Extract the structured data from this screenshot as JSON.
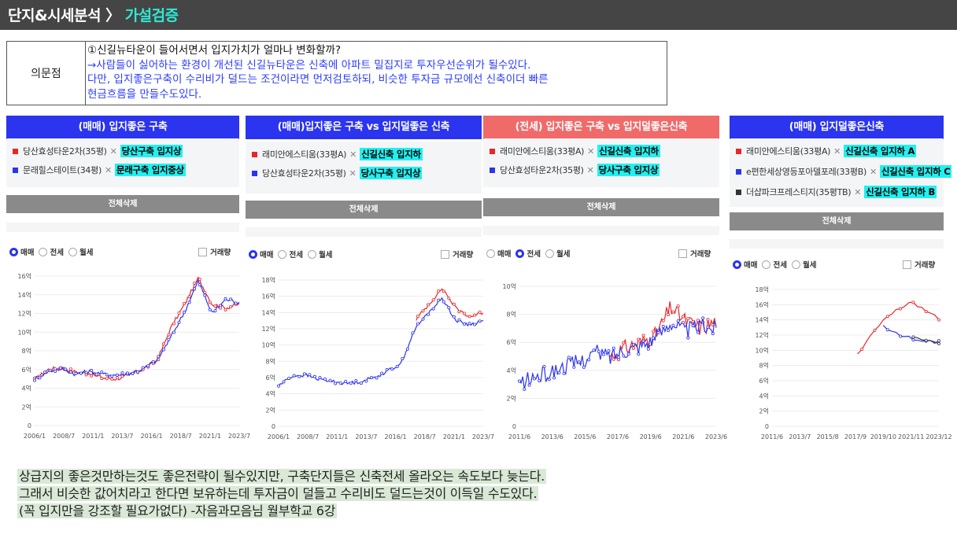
{
  "header": {
    "title_prefix": "단지&시세분석 〉",
    "title_highlight": "가설검증"
  },
  "question": {
    "label": "의문점",
    "line1": "①신길뉴타운이 들어서면서 입지가치가 얼마나 변화할까?",
    "line2": "→사람들이 싫어하는 환경이 개선된 신길뉴타운은 신축에 아파트 밀집지로 투자우선순위가 될수있다.",
    "line3": "다만, 입지좋은구축이 수리비가 덜드는 조건이라면 먼저검토하되, 비슷한 투자금 규모에선 신축이더 빠른",
    "line4": "현금흐름을 만들수도있다."
  },
  "ui": {
    "delete_all": "전체삭제",
    "sale": "매매",
    "jeonse": "전세",
    "monthly": "월세",
    "volume": "거래량"
  },
  "panels": [
    {
      "title": "(매매) 입지좋은 구축",
      "header_color": "#2b34ee",
      "selected_radio": "매매",
      "items": [
        {
          "color": "#e8262b",
          "name": "당산효성타운2차(35평)",
          "tag": "당산구축 입지상"
        },
        {
          "color": "#2b34ee",
          "name": "문래힐스테이트(34평)",
          "tag": "문래구축 입지중상"
        }
      ],
      "y_ticks": [
        "16억",
        "14억",
        "12억",
        "10억",
        "8억",
        "6억",
        "4억",
        "2억",
        "0"
      ],
      "x_ticks": [
        "2006/1",
        "2008/7",
        "2011/1",
        "2013/7",
        "2016/1",
        "2018/7",
        "2021/1",
        "2023/7"
      ]
    },
    {
      "title": "(매매)입지좋은 구축 vs 입지덜좋은 신축",
      "header_color": "#2b34ee",
      "selected_radio": "매매",
      "items": [
        {
          "color": "#e8262b",
          "name": "래미안에스티움(33평A)",
          "tag": "신길신축 입지하"
        },
        {
          "color": "#2b34ee",
          "name": "당산효성타운2차(35평)",
          "tag": "당사구축 입지상"
        }
      ],
      "y_ticks": [
        "18억",
        "16억",
        "14억",
        "12억",
        "10억",
        "8억",
        "6억",
        "4억",
        "2억",
        "0"
      ],
      "x_ticks": [
        "2006/1",
        "2008/7",
        "2011/1",
        "2013/7",
        "2016/1",
        "2018/7",
        "2021/1",
        "2023/7"
      ]
    },
    {
      "title": "(전세) 입지좋은 구축 vs 입지덜좋은신축",
      "header_color": "#f06a6a",
      "selected_radio": "전세",
      "items": [
        {
          "color": "#e8262b",
          "name": "래미안에스티움(33평A)",
          "tag": "신길신축 입지하"
        },
        {
          "color": "#2b34ee",
          "name": "당산효성타운2차(35평)",
          "tag": "당사구축 입지상"
        }
      ],
      "y_ticks": [
        "10억",
        "8억",
        "6억",
        "4억",
        "2억",
        "0"
      ],
      "x_ticks": [
        "2011/6",
        "2013/6",
        "2015/6",
        "2017/6",
        "2019/6",
        "2021/6",
        "2023/6"
      ]
    },
    {
      "title": "(매매) 입지덜좋은신축",
      "header_color": "#2b34ee",
      "selected_radio": "매매",
      "items": [
        {
          "color": "#e8262b",
          "name": "래미안에스티움(33평A)",
          "tag": "신길신축 입지하 A"
        },
        {
          "color": "#2b34ee",
          "name": "e편한세상영등포아델포레(33평B)",
          "tag": "신길신축 입지하 C"
        },
        {
          "color": "#333333",
          "name": "더샵파크프레스티지(35평TB)",
          "tag": "신길신축 입지하 B"
        }
      ],
      "y_ticks": [
        "18억",
        "16억",
        "14억",
        "12억",
        "10억",
        "8억",
        "6억",
        "4억",
        "2억",
        "0"
      ],
      "x_ticks": [
        "2011/6",
        "2013/7",
        "2015/8",
        "2017/9",
        "2019/10",
        "2021/11",
        "2023/12"
      ]
    }
  ],
  "chart_data": [
    {
      "type": "line",
      "title": "(매매) 입지좋은 구축",
      "x": [
        "2006/1",
        "2007/7",
        "2009/1",
        "2010/7",
        "2012/1",
        "2013/7",
        "2015/1",
        "2016/7",
        "2018/1",
        "2019/1",
        "2020/1",
        "2021/1",
        "2021/7",
        "2022/7",
        "2023/7",
        "2024/1"
      ],
      "ylim": [
        0,
        16
      ],
      "series": [
        {
          "name": "당산효성타운2차(35평)",
          "color": "#e8262b",
          "values": [
            4.9,
            6.0,
            6.2,
            5.7,
            5.6,
            5.1,
            5.0,
            5.4,
            6.1,
            7.0,
            10.5,
            13.0,
            15.8,
            13.0,
            12.6,
            13.0
          ]
        },
        {
          "name": "문래힐스테이트(34평)",
          "color": "#2b34ee",
          "values": [
            5.0,
            5.8,
            6.1,
            5.5,
            5.8,
            5.5,
            5.4,
            5.6,
            6.1,
            7.0,
            9.5,
            12.2,
            15.5,
            12.0,
            13.5,
            13.2
          ]
        }
      ]
    },
    {
      "type": "line",
      "title": "(매매)입지좋은 구축 vs 입지덜좋은 신축",
      "x": [
        "2006/1",
        "2007/7",
        "2009/1",
        "2010/7",
        "2012/1",
        "2013/7",
        "2015/1",
        "2016/7",
        "2018/1",
        "2019/1",
        "2020/1",
        "2021/1",
        "2021/7",
        "2022/7",
        "2023/7",
        "2024/1"
      ],
      "ylim": [
        0,
        18
      ],
      "series": [
        {
          "name": "래미안에스티움(33평A)",
          "color": "#e8262b",
          "values": [
            null,
            null,
            null,
            null,
            null,
            null,
            null,
            null,
            null,
            null,
            13.0,
            15.0,
            17.0,
            14.5,
            13.5,
            14.0
          ]
        },
        {
          "name": "당산효성타운2차(35평)",
          "color": "#2b34ee",
          "values": [
            5.0,
            6.2,
            6.3,
            5.8,
            5.5,
            5.3,
            5.5,
            6.0,
            6.8,
            7.8,
            12.0,
            14.0,
            15.8,
            13.0,
            12.5,
            13.0
          ]
        }
      ]
    },
    {
      "type": "line",
      "title": "(전세) 입지좋은 구축 vs 입지덜좋은신축",
      "x": [
        "2011/6",
        "2012/6",
        "2013/6",
        "2014/6",
        "2015/6",
        "2016/6",
        "2017/6",
        "2018/6",
        "2019/6",
        "2020/6",
        "2021/6",
        "2022/6",
        "2023/6",
        "2024/1"
      ],
      "ylim": [
        0,
        10
      ],
      "series": [
        {
          "name": "래미안에스티움(33평A)",
          "color": "#e8262b",
          "values": [
            null,
            null,
            null,
            null,
            null,
            null,
            5.0,
            5.6,
            6.0,
            6.5,
            8.5,
            7.5,
            7.0,
            7.5
          ]
        },
        {
          "name": "당산효성타운2차(35평)",
          "color": "#2b34ee",
          "values": [
            3.0,
            3.5,
            3.8,
            4.3,
            4.6,
            5.3,
            5.0,
            5.5,
            5.8,
            6.3,
            7.5,
            6.8,
            7.2,
            7.0
          ]
        }
      ]
    },
    {
      "type": "line",
      "title": "(매매) 입지덜좋은신축",
      "x": [
        "2011/6",
        "2013/7",
        "2015/8",
        "2017/9",
        "2019/10",
        "2021/11",
        "2023/12"
      ],
      "ylim": [
        0,
        18
      ],
      "series": [
        {
          "name": "래미안에스티움(33평A)",
          "color": "#e8262b",
          "values": [
            null,
            null,
            null,
            9.0,
            14.0,
            16.5,
            14.0
          ]
        },
        {
          "name": "e편한세상영등포아델포레(33평B)",
          "color": "#2b34ee",
          "values": [
            null,
            null,
            null,
            null,
            13.0,
            11.5,
            11.0
          ]
        },
        {
          "name": "더샵파크프레스티지(35평TB)",
          "color": "#333333",
          "values": [
            null,
            null,
            null,
            null,
            null,
            12.0,
            11.0
          ]
        }
      ]
    }
  ],
  "note": {
    "line1": "상급지의 좋은것만하는것도 좋은전략이 될수있지만, 구축단지들은 신축전세 올라오는 속도보다 늦는다.",
    "line2": "그래서 비슷한 값어치라고 한다면 보유하는데 투자금이 덜들고 수리비도 덜드는것이 이득일 수도있다.",
    "line3": "(꼭 입지만을 강조할 필요가없다) -자음과모음님 월부학교 6강"
  }
}
